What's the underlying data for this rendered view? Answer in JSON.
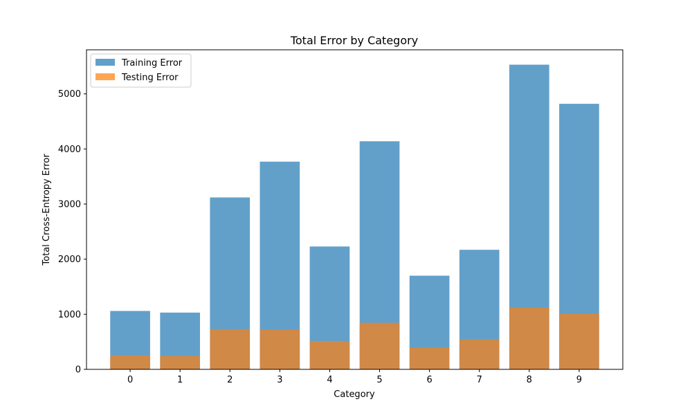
{
  "chart_data": {
    "type": "bar",
    "title": "Total Error by Category",
    "xlabel": "Category",
    "ylabel": "Total Cross-Entropy Error",
    "categories": [
      "0",
      "1",
      "2",
      "3",
      "4",
      "5",
      "6",
      "7",
      "8",
      "9"
    ],
    "series": [
      {
        "name": "Training Error",
        "color": "#1f77b4",
        "opacity": 0.7,
        "values": [
          1060,
          1030,
          3120,
          3770,
          2230,
          4140,
          1700,
          2170,
          5530,
          4820
        ]
      },
      {
        "name": "Testing Error",
        "color": "#ff7f0e",
        "opacity": 0.7,
        "values": [
          255,
          245,
          730,
          720,
          515,
          845,
          395,
          545,
          1120,
          1015
        ]
      }
    ],
    "ylim": [
      0,
      5800
    ],
    "yticks": [
      0,
      1000,
      2000,
      3000,
      4000,
      5000
    ],
    "grid": false,
    "legend_position": "top-left",
    "overlay": true
  }
}
